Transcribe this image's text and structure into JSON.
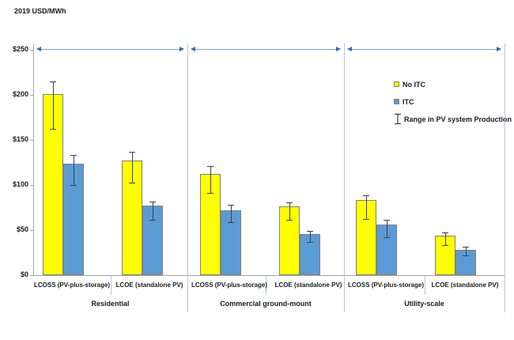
{
  "title": "2019 USD/MWh",
  "colors": {
    "no_itc": "#ffff00",
    "itc": "#5b9bd5",
    "bar_border": "#808080",
    "error_bar": "#404040",
    "arrow_line": "#7da7d8",
    "arrow_head": "#2e6db4",
    "divider": "#b3c8e4",
    "axis": "#a6a6a6"
  },
  "legend": {
    "items": [
      {
        "label": "No ITC",
        "swatch": "no-itc"
      },
      {
        "label": "ITC",
        "swatch": "itc"
      },
      {
        "label": "Range in PV system Production",
        "swatch": "errorbar"
      }
    ]
  },
  "chart_data": {
    "type": "bar",
    "title": "",
    "unit_label": "2019 USD/MWh",
    "ylim": [
      0,
      250
    ],
    "ytick_interval": 50,
    "ytick_labels": [
      "$0",
      "$50",
      "$100",
      "$150",
      "$200",
      "$250"
    ],
    "grid": false,
    "legend_position": "upper-right",
    "series": [
      "No ITC",
      "ITC"
    ],
    "series_colors": {
      "No ITC": "#ffff00",
      "ITC": "#5b9bd5"
    },
    "error_bars_label": "Range in PV system Production",
    "groups": [
      {
        "label": "Residential",
        "categories": [
          {
            "label": "LCOSS (PV-plus-storage)",
            "values": {
              "No ITC": 201,
              "ITC": 124
            },
            "ranges": {
              "No ITC": [
                162,
                215
              ],
              "ITC": [
                100,
                133
              ]
            }
          },
          {
            "label": "LCOE (standalone PV)",
            "values": {
              "No ITC": 127,
              "ITC": 77
            },
            "ranges": {
              "No ITC": [
                103,
                137
              ],
              "ITC": [
                61,
                82
              ]
            }
          }
        ]
      },
      {
        "label": "Commercial ground-mount",
        "categories": [
          {
            "label": "LCOSS (PV-plus-storage)",
            "values": {
              "No ITC": 112,
              "ITC": 72
            },
            "ranges": {
              "No ITC": [
                91,
                121
              ],
              "ITC": [
                59,
                78
              ]
            }
          },
          {
            "label": "LCOE (standalone PV)",
            "values": {
              "No ITC": 76,
              "ITC": 46
            },
            "ranges": {
              "No ITC": [
                61,
                81
              ],
              "ITC": [
                37,
                49
              ]
            }
          }
        ]
      },
      {
        "label": "Utility-scale",
        "categories": [
          {
            "label": "LCOSS (PV-plus-storage)",
            "values": {
              "No ITC": 83,
              "ITC": 56
            },
            "ranges": {
              "No ITC": [
                62,
                89
              ],
              "ITC": [
                42,
                61
              ]
            }
          },
          {
            "label": "LCOE (standalone PV)",
            "values": {
              "No ITC": 44,
              "ITC": 28
            },
            "ranges": {
              "No ITC": [
                33,
                47
              ],
              "ITC": [
                22,
                32
              ]
            }
          }
        ]
      }
    ]
  }
}
